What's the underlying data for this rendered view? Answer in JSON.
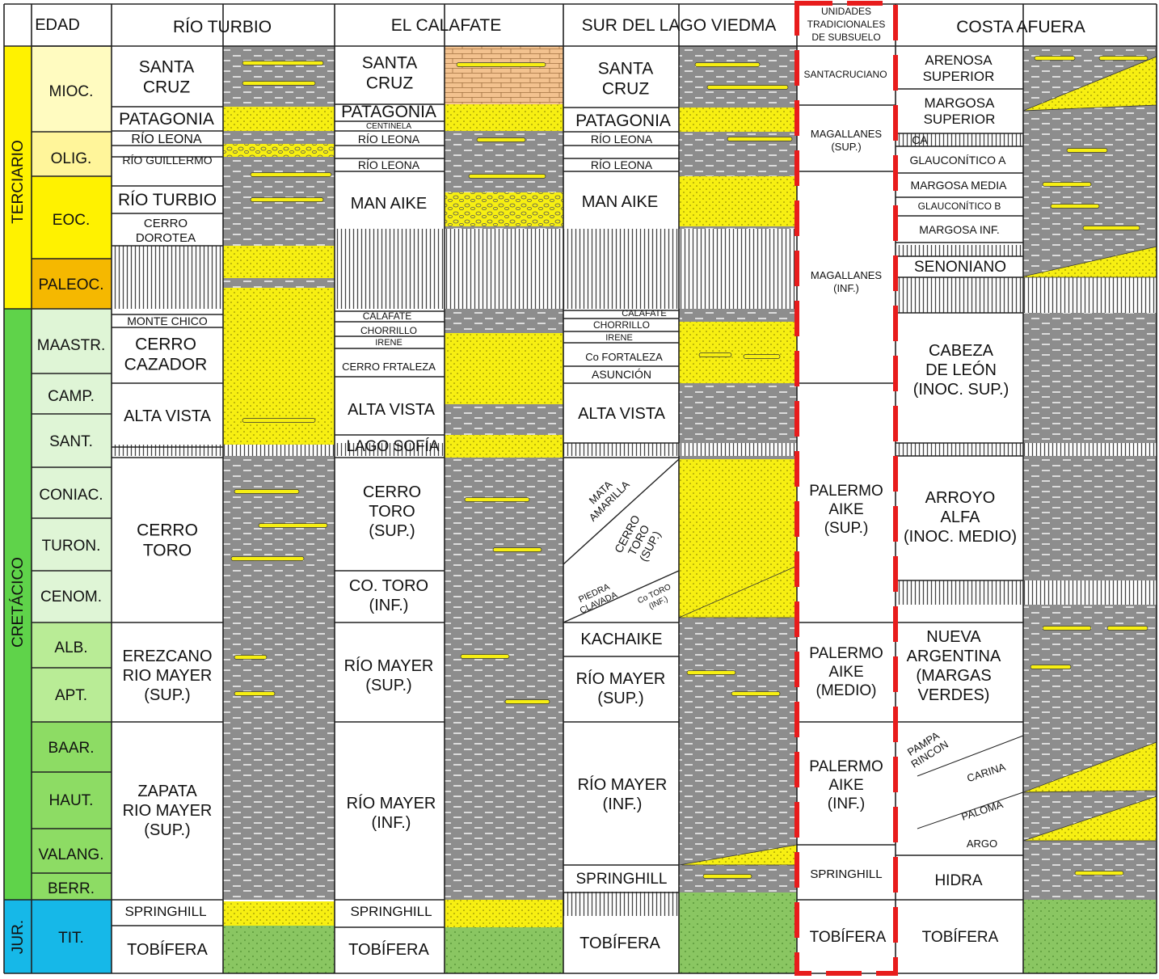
{
  "headers": {
    "edad": "EDAD",
    "rio_turbio": "RÍO TURBIO",
    "el_calafate": "EL CALAFATE",
    "sur_lago_viedma": "SUR DEL LAGO VIEDMA",
    "unidades": [
      "UNIDADES",
      "TRADICIONALES",
      "DE SUBSUELO"
    ],
    "costa_afuera": "COSTA AFUERA"
  },
  "periods": {
    "terciario": "TERCIARIO",
    "cretacico": "CRETÁCICO",
    "jur": "JUR."
  },
  "stages": [
    "MIOC.",
    "OLIG.",
    "EOC.",
    "PALEOC.",
    "MAASTR.",
    "CAMP.",
    "SANT.",
    "CONIAC.",
    "TURON.",
    "CENOM.",
    "ALB.",
    "APT.",
    "BAAR.",
    "HAUT.",
    "VALANG.",
    "BERR.",
    "TIT."
  ],
  "rio_turbio": {
    "santa_cruz": [
      "SANTA",
      "CRUZ"
    ],
    "patagonia": "PATAGONIA",
    "rio_leona": "RÍO LEONA",
    "rio_guillermo": "RÍO GUILLERMO",
    "rio_turbio": "RÍO TURBIO",
    "cerro_dorotea": [
      "CERRO",
      "DOROTEA"
    ],
    "monte_chico": "MONTE CHICO",
    "cerro_cazador": [
      "CERRO",
      "CAZADOR"
    ],
    "alta_vista": "ALTA VISTA",
    "cerro_toro": [
      "CERRO",
      "TORO"
    ],
    "erezcano": [
      "EREZCANO",
      "RIO MAYER",
      "(SUP.)"
    ],
    "zapata": [
      "ZAPATA",
      "RIO MAYER",
      "(SUP.)"
    ],
    "springhill": "SPRINGHILL",
    "tobifera": "TOBÍFERA"
  },
  "el_calafate": {
    "santa_cruz": [
      "SANTA",
      "CRUZ"
    ],
    "patagonia": "PATAGONIA",
    "centinela": "CENTINELA",
    "rio_leona_1": "RÍO LEONA",
    "rio_leona_2": "RÍO LEONA",
    "man_aike": "MAN AIKE",
    "calafate": "CALAFATE",
    "chorrillo": "CHORRILLO",
    "irene": "IRENE",
    "cerro_fortaleza": "CERRO FRTALEZA",
    "alta_vista": "ALTA VISTA",
    "lago_sofia": "LAGO SOFÍA",
    "cerro_toro_sup": [
      "CERRO",
      "TORO",
      "(SUP.)"
    ],
    "cerro_toro_inf": [
      "CO. TORO",
      "(INF.)"
    ],
    "rio_mayer_sup": [
      "RÍO MAYER",
      "(SUP.)"
    ],
    "rio_mayer_inf": [
      "RÍO MAYER",
      "(INF.)"
    ],
    "springhill": "SPRINGHILL",
    "tobifera": "TOBÍFERA"
  },
  "sur_lago_viedma": {
    "santa_cruz": [
      "SANTA",
      "CRUZ"
    ],
    "patagonia": "PATAGONIA",
    "rio_leona_1": "RÍO LEONA",
    "rio_leona_2": "RÍO LEONA",
    "man_aike": "MAN AIKE",
    "calafate": "CALAFATE",
    "chorrillo": "CHORRILLO",
    "irene": "IRENE",
    "fortaleza": "Co FORTALEZA",
    "asuncion": "ASUNCIÓN",
    "alta_vista": "ALTA VISTA",
    "mata_amarilla": [
      "MATA",
      "AMARILLA"
    ],
    "cerro_toro_sup": [
      "CERRO",
      "TORO",
      "(SUP.)"
    ],
    "piedra_clavada": [
      "PIEDRA",
      "CLAVADA"
    ],
    "co_toro_inf": [
      "Co TORO",
      "(INF.)"
    ],
    "kachaike": "KACHAIKE",
    "rio_mayer_sup": [
      "RÍO MAYER",
      "(SUP.)"
    ],
    "rio_mayer_inf": [
      "RÍO MAYER",
      "(INF.)"
    ],
    "springhill": "SPRINGHILL",
    "tobifera": "TOBÍFERA"
  },
  "unidades": {
    "santacruciano": "SANTACRUCIANO",
    "magallanes_sup": [
      "MAGALLANES",
      "(SUP.)"
    ],
    "magallanes_inf": [
      "MAGALLANES",
      "(INF.)"
    ],
    "palermo_sup": [
      "PALERMO",
      "AIKE",
      "(SUP.)"
    ],
    "palermo_medio": [
      "PALERMO",
      "AIKE",
      "(MEDIO)"
    ],
    "palermo_inf": [
      "PALERMO",
      "AIKE",
      "(INF.)"
    ],
    "springhill": "SPRINGHILL",
    "tobifera": "TOBÍFERA"
  },
  "costa_afuera": {
    "arenosa": [
      "ARENOSA",
      "SUPERIOR"
    ],
    "margosa_sup": [
      "MARGOSA",
      "SUPERIOR"
    ],
    "ca": "CA",
    "glauconitico_a": "GLAUCONÍTICO A",
    "margosa_media": "MARGOSA MEDIA",
    "glauconitico_b": "GLAUCONÍTICO B",
    "margosa_inf": "MARGOSA INF.",
    "senoniano": "SENONIANO",
    "cabeza_leon": [
      "CABEZA",
      "DE LEÓN",
      "(INOC. SUP.)"
    ],
    "arroyo_alfa": [
      "ARROYO",
      "ALFA",
      "(INOC. MEDIO)"
    ],
    "nueva_argentina": [
      "NUEVA",
      "ARGENTINA",
      "(MARGAS",
      "VERDES)"
    ],
    "pampa_rincon": [
      "PAMPA",
      "RINCON"
    ],
    "carina": "CARINA",
    "paloma": "PALOMA",
    "argo": "ARGO",
    "hidra": "HIDRA",
    "tobifera": "TOBÍFERA"
  },
  "colors": {
    "terciario": "#fff200",
    "paleoceno": "#f5b800",
    "cretacico": "#5fd34a",
    "jurasico": "#16b8e8",
    "mioceno": "#fffbc0",
    "oligoceno": "#fff59a",
    "eoceno": "#fff200",
    "cretacic_stage": "#dff5d6",
    "alb_apt": "#b9ec96",
    "neocomian": "#8ddc64",
    "sandstone": "#f7ef12",
    "shale": "#8d8d8d",
    "volcanic": "#8ac662",
    "limestone": "#f3c28f",
    "unidades_border": "#e81c1c"
  }
}
